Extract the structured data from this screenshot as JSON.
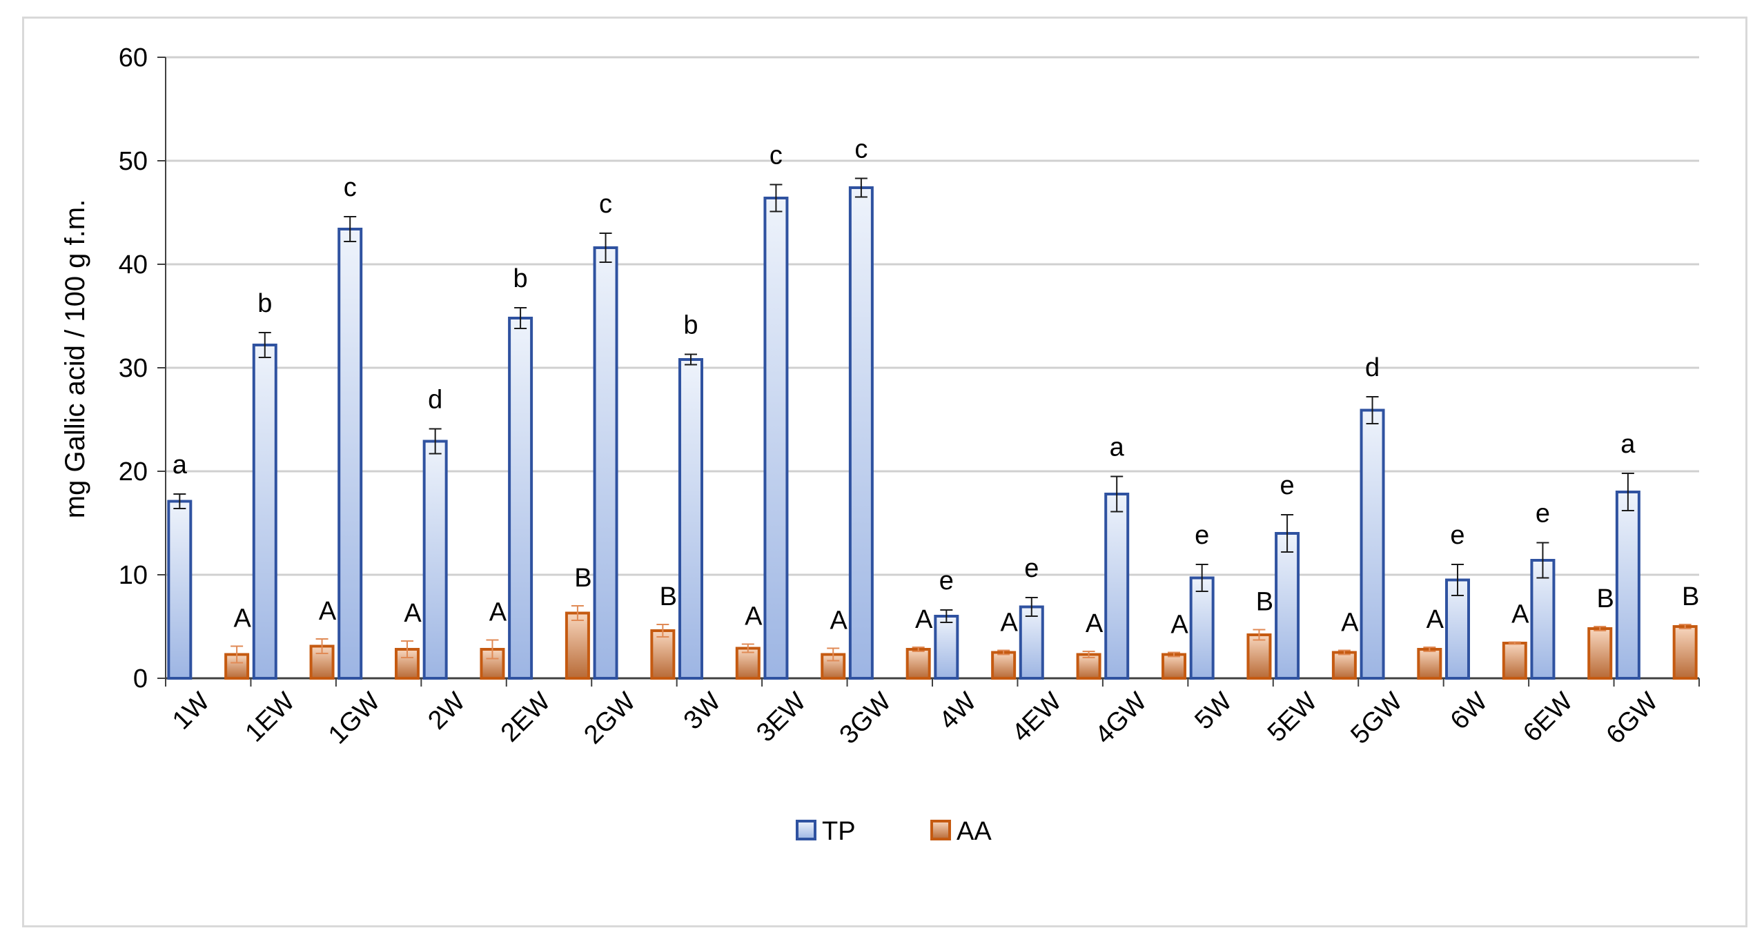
{
  "chart_data": {
    "type": "bar",
    "title": "",
    "xlabel": "",
    "ylabel": "mg Gallic acid / 100 g  f.m.",
    "ylim": [
      0,
      60
    ],
    "yticks": [
      0,
      10,
      20,
      30,
      40,
      50,
      60
    ],
    "grid": true,
    "legend_position": "bottom-center",
    "categories": [
      "1W",
      "1EW",
      "1GW",
      "2W",
      "2EW",
      "2GW",
      "3W",
      "3EW",
      "3GW",
      "4W",
      "4EW",
      "4GW",
      "5W",
      "5EW",
      "5GW",
      "6W",
      "6EW",
      "6GW"
    ],
    "series": [
      {
        "name": "TP",
        "color": "#2f52a0",
        "fill_light": "#eef3fb",
        "fill_dark": "#9db5e3",
        "values": [
          17.1,
          32.2,
          43.4,
          22.9,
          34.8,
          41.6,
          30.8,
          46.4,
          47.4,
          6.0,
          6.9,
          17.8,
          9.7,
          14.0,
          25.9,
          9.5,
          11.4,
          18.0
        ],
        "errors": [
          0.7,
          1.2,
          1.2,
          1.2,
          1.0,
          1.4,
          0.5,
          1.3,
          0.9,
          0.6,
          0.9,
          1.7,
          1.3,
          1.8,
          1.3,
          1.5,
          1.7,
          1.8
        ],
        "letters": [
          "a",
          "b",
          "c",
          "d",
          "b",
          "c",
          "b",
          "c",
          "c",
          "e",
          "e",
          "a",
          "e",
          "e",
          "d",
          "e",
          "e",
          "a"
        ]
      },
      {
        "name": "AA",
        "color": "#c55a11",
        "fill_light": "#f8d7bf",
        "fill_dark": "#b86a36",
        "values": [
          2.3,
          3.1,
          2.8,
          2.8,
          6.3,
          4.6,
          2.9,
          2.3,
          2.8,
          2.5,
          2.3,
          2.3,
          4.2,
          2.5,
          2.8,
          3.4,
          4.8,
          5.0
        ],
        "errors": [
          0.8,
          0.7,
          0.8,
          0.9,
          0.7,
          0.6,
          0.4,
          0.6,
          0.2,
          0.2,
          0.3,
          0.2,
          0.5,
          0.2,
          0.2,
          0.1,
          0.2,
          0.2
        ],
        "letters": [
          "A",
          "A",
          "A",
          "A",
          "B",
          "B",
          "A",
          "A",
          "A",
          "A",
          "A",
          "A",
          "B",
          "A",
          "A",
          "A",
          "B",
          "B"
        ]
      }
    ]
  }
}
